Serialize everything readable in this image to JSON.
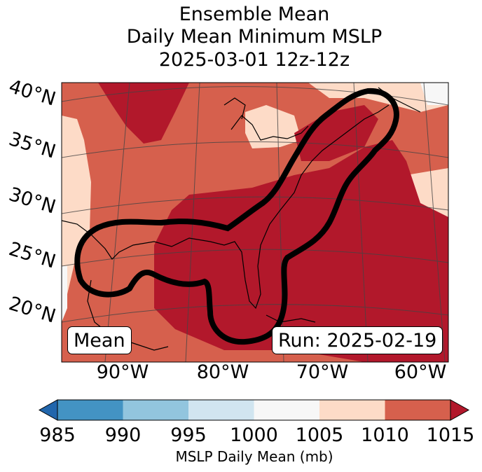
{
  "title": {
    "line1": "Ensemble Mean",
    "line2": "Daily Mean Minimum MSLP",
    "line3": "2025-03-01 12z-12z"
  },
  "map": {
    "lat_labels": [
      "40°N",
      "35°N",
      "30°N",
      "25°N",
      "20°N"
    ],
    "lon_labels": [
      "90°W",
      "80°W",
      "70°W",
      "60°W"
    ],
    "corner_left_label": "Mean",
    "corner_right_label": "Run: 2025-02-19",
    "colors": {
      "ocean_deep": "#b2182b",
      "mid": "#d6604d",
      "light": "#fddbc7",
      "pale": "#f7f7f7",
      "contour": "#000000"
    }
  },
  "colorbar": {
    "label": "MSLP Daily Mean (mb)",
    "ticks": [
      "985",
      "990",
      "995",
      "1000",
      "1005",
      "1010",
      "1015"
    ],
    "colors": [
      "#2166ac",
      "#4393c3",
      "#92c5de",
      "#d1e5f0",
      "#f7f7f7",
      "#fddbc7",
      "#d6604d",
      "#b2182b"
    ]
  }
}
